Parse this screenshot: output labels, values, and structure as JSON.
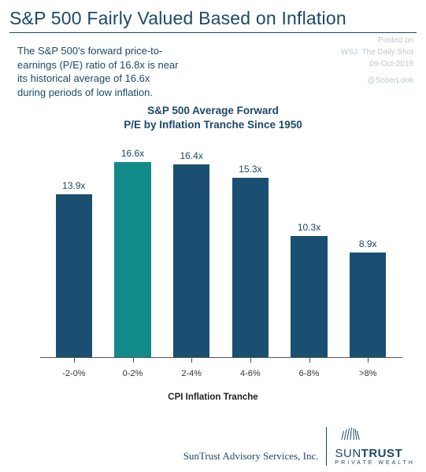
{
  "title": "S&P 500 Fairly Valued Based on Inflation",
  "meta": {
    "posted": "Posted on",
    "source": "WSJ: The Daily Shot",
    "date": "09-Oct-2019",
    "handle": "@SoberLook"
  },
  "commentary": "The S&P 500's forward price-to-earnings (P/E) ratio of 16.8x is near its historical average of 16.6x during periods of low inflation.",
  "chart": {
    "type": "bar",
    "title_line1": "S&P 500 Average Forward",
    "title_line2": "P/E by Inflation Tranche Since 1950",
    "x_axis_label": "CPI Inflation Tranche",
    "categories": [
      "-2-0%",
      "0-2%",
      "2-4%",
      "4-6%",
      "6-8%",
      ">8%"
    ],
    "values": [
      13.9,
      16.6,
      16.4,
      15.3,
      10.3,
      8.9
    ],
    "value_labels": [
      "13.9x",
      "16.6x",
      "16.4x",
      "15.3x",
      "10.3x",
      "8.9x"
    ],
    "bar_colors": [
      "#1b4f72",
      "#128a8a",
      "#1b4f72",
      "#1b4f72",
      "#1b4f72",
      "#1b4f72"
    ],
    "ymax": 18,
    "background_color": "#ffffff",
    "axis_color": "#555555",
    "text_color": "#1b4969",
    "title_fontsize": 13.5,
    "label_fontsize": 12,
    "tick_fontsize": 11
  },
  "footer": {
    "advisory": "SunTrust Advisory Services, Inc.",
    "brand_a": "SUN",
    "brand_b": "TRUST",
    "brand_sub": "PRIVATE WEALTH"
  }
}
